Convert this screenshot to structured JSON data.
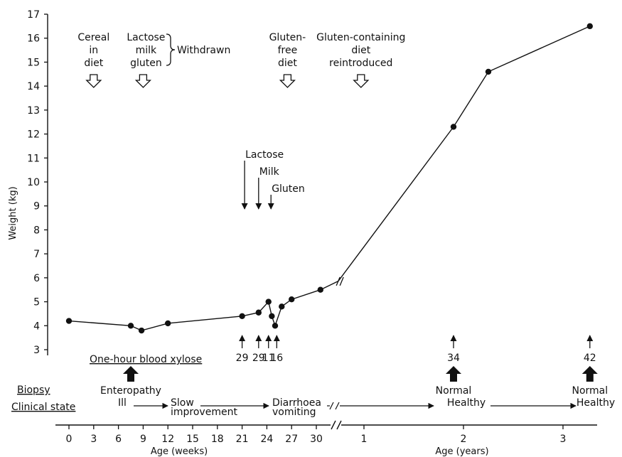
{
  "chart_data": {
    "type": "line",
    "title": "",
    "ylabel": "Weight (kg)",
    "ylim": [
      3,
      17
    ],
    "y_ticks": [
      "3",
      "4",
      "5",
      "6",
      "7",
      "8",
      "9",
      "10",
      "11",
      "12",
      "13",
      "14",
      "15",
      "16",
      "17"
    ],
    "xlabel_weeks": "Age (weeks)",
    "xlabel_years": "Age (years)",
    "x_ticks_weeks": [
      "0",
      "3",
      "6",
      "9",
      "12",
      "15",
      "18",
      "21",
      "24",
      "27",
      "30"
    ],
    "x_ticks_years": [
      "1",
      "2",
      "3"
    ],
    "series": [
      {
        "segment": "weeks",
        "x": [
          0,
          7.5,
          8.8,
          12,
          21,
          23,
          24.2,
          24.6,
          25.0,
          25.8,
          27,
          30.5,
          32.6
        ],
        "y": [
          4.2,
          4.0,
          3.8,
          4.1,
          4.4,
          4.55,
          5.0,
          4.4,
          4.0,
          4.8,
          5.1,
          5.5,
          5.85
        ]
      },
      {
        "segment": "years",
        "x": [
          0.74,
          1.9,
          2.25,
          3.27
        ],
        "y": [
          5.85,
          12.3,
          14.6,
          16.5
        ]
      }
    ],
    "annotations": {
      "top": [
        {
          "lines": [
            "Cereal",
            "in",
            "diet"
          ],
          "x_weeks": 3
        },
        {
          "lines": [
            "Lactose",
            "milk",
            "gluten"
          ],
          "x_weeks": 9
        },
        {
          "lines": [
            "Gluten-",
            "free",
            "diet"
          ],
          "x_weeks": 26.5
        },
        {
          "lines": [
            "Gluten-containing",
            "diet",
            "reintroduced"
          ],
          "x_years": 0.97
        }
      ],
      "withdrawn_label": "Withdrawn",
      "challenge": [
        {
          "label": "Lactose",
          "x_weeks": 21.3
        },
        {
          "label": "Milk",
          "x_weeks": 23.0
        },
        {
          "label": "Gluten",
          "x_weeks": 24.5
        }
      ],
      "xylose_label": "One-hour blood xylose",
      "xylose_values": [
        {
          "value": "29",
          "x_weeks": 21
        },
        {
          "value": "29",
          "x_weeks": 23
        },
        {
          "value": "11",
          "x_weeks": 24.2
        },
        {
          "value": "16",
          "x_weeks": 25.2
        },
        {
          "value": "34",
          "x_years": 1.9
        },
        {
          "value": "42",
          "x_years": 3.27
        }
      ],
      "biopsy_label": "Biopsy",
      "biopsy_results": [
        {
          "label": "Enteropathy",
          "x_weeks": 7.5
        },
        {
          "label": "Normal",
          "x_years": 1.9
        },
        {
          "label": "Normal",
          "x_years": 3.27
        }
      ],
      "clinical_label": "Clinical state",
      "clinical_states": [
        {
          "lines": [
            "Ill"
          ],
          "x_weeks": 7.5
        },
        {
          "lines": [
            "Slow",
            "improvement"
          ],
          "x_weeks": 13
        },
        {
          "lines": [
            "Diarrhoea",
            "vomiting"
          ],
          "x_weeks": 25
        },
        {
          "lines": [
            "Healthy"
          ],
          "x_years": 1.95
        },
        {
          "lines": [
            "Healthy"
          ],
          "x_years": 3.3
        }
      ]
    }
  }
}
